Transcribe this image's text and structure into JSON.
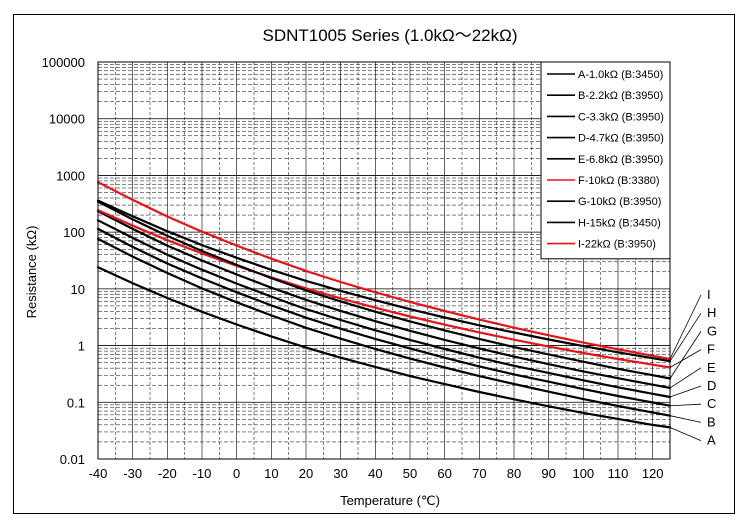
{
  "chart_data": {
    "type": "line",
    "title": "SDNT1005 Series (1.0kΩ～22kΩ)",
    "xlabel": "Temperature (℃)",
    "ylabel": "Resistance (kΩ)",
    "xlim": [
      -40,
      125
    ],
    "ylim": [
      0.01,
      100000
    ],
    "y_scale": "log",
    "grid": true,
    "legend_position": "top-right",
    "x_ticks": [
      "-40",
      "-30",
      "-20",
      "-10",
      "0",
      "10",
      "20",
      "30",
      "40",
      "50",
      "60",
      "70",
      "80",
      "90",
      "100",
      "110",
      "120"
    ],
    "y_ticks": [
      "100000",
      "10000",
      "1000",
      "100",
      "10",
      "1",
      "0.1",
      "0.01"
    ],
    "colors": {
      "black": "#000000",
      "red": "#e8131a",
      "grid": "#000000"
    },
    "series": [
      {
        "name": "A-1.0kΩ (B:3450)",
        "end_label": "A",
        "color": "#000000",
        "x": [
          -40,
          -30,
          -20,
          -10,
          0,
          10,
          20,
          25,
          30,
          40,
          50,
          60,
          70,
          80,
          90,
          100,
          110,
          120,
          125
        ],
        "values": [
          24.0,
          12.6,
          6.9,
          3.94,
          2.35,
          1.45,
          0.92,
          0.75,
          0.61,
          0.42,
          0.29,
          0.209,
          0.152,
          0.113,
          0.085,
          0.065,
          0.051,
          0.04,
          0.036
        ]
      },
      {
        "name": "B-2.2kΩ (B:3950)",
        "end_label": "B",
        "color": "#000000",
        "x": [
          -40,
          -30,
          -20,
          -10,
          0,
          10,
          20,
          25,
          30,
          40,
          50,
          60,
          70,
          80,
          90,
          100,
          110,
          120,
          125
        ],
        "values": [
          76,
          37,
          19,
          10.2,
          5.8,
          3.4,
          2.06,
          1.65,
          1.32,
          0.87,
          0.59,
          0.41,
          0.29,
          0.21,
          0.154,
          0.114,
          0.086,
          0.066,
          0.058
        ]
      },
      {
        "name": "C-3.3kΩ (B:3950)",
        "end_label": "C",
        "color": "#000000",
        "x": [
          -40,
          -30,
          -20,
          -10,
          0,
          10,
          20,
          25,
          30,
          40,
          50,
          60,
          70,
          80,
          90,
          100,
          110,
          120,
          125
        ],
        "values": [
          114,
          55,
          28,
          15.3,
          8.7,
          5.1,
          3.1,
          2.48,
          1.98,
          1.31,
          0.89,
          0.61,
          0.43,
          0.31,
          0.231,
          0.171,
          0.129,
          0.099,
          0.087
        ]
      },
      {
        "name": "D-4.7kΩ (B:3950)",
        "end_label": "D",
        "color": "#000000",
        "x": [
          -40,
          -30,
          -20,
          -10,
          0,
          10,
          20,
          25,
          30,
          40,
          50,
          60,
          70,
          80,
          90,
          100,
          110,
          120,
          125
        ],
        "values": [
          162,
          79,
          40,
          21.8,
          12.4,
          7.3,
          4.4,
          3.53,
          2.82,
          1.86,
          1.26,
          0.87,
          0.61,
          0.44,
          0.33,
          0.244,
          0.184,
          0.141,
          0.124
        ]
      },
      {
        "name": "E-6.8kΩ (B:3950)",
        "end_label": "E",
        "color": "#000000",
        "x": [
          -40,
          -30,
          -20,
          -10,
          0,
          10,
          20,
          25,
          30,
          40,
          50,
          60,
          70,
          80,
          90,
          100,
          110,
          120,
          125
        ],
        "values": [
          235,
          114,
          58,
          31.6,
          17.9,
          10.5,
          6.4,
          5.1,
          4.08,
          2.69,
          1.82,
          1.26,
          0.89,
          0.64,
          0.47,
          0.35,
          0.266,
          0.204,
          0.179
        ]
      },
      {
        "name": "F-10kΩ  (B:3380)",
        "end_label": "F",
        "color": "#e8131a",
        "x": [
          -40,
          -30,
          -20,
          -10,
          0,
          10,
          20,
          25,
          30,
          40,
          50,
          60,
          70,
          80,
          90,
          100,
          110,
          120,
          125
        ],
        "values": [
          245,
          130,
          72,
          42,
          25.5,
          15.9,
          10.2,
          8.3,
          6.8,
          4.65,
          3.25,
          2.33,
          1.71,
          1.27,
          0.96,
          0.74,
          0.58,
          0.46,
          0.41
        ]
      },
      {
        "name": "G-10kΩ (B:3950)",
        "end_label": "G",
        "color": "#000000",
        "x": [
          -40,
          -30,
          -20,
          -10,
          0,
          10,
          20,
          25,
          30,
          40,
          50,
          60,
          70,
          80,
          90,
          100,
          110,
          120,
          125
        ],
        "values": [
          345,
          168,
          86,
          46.5,
          26.4,
          15.5,
          9.4,
          7.5,
          6.0,
          3.96,
          2.67,
          1.85,
          1.31,
          0.94,
          0.7,
          0.52,
          0.39,
          0.3,
          0.263
        ]
      },
      {
        "name": "H-15kΩ (B:3450)",
        "end_label": "H",
        "color": "#000000",
        "x": [
          -40,
          -30,
          -20,
          -10,
          0,
          10,
          20,
          25,
          30,
          40,
          50,
          60,
          70,
          80,
          90,
          100,
          110,
          120,
          125
        ],
        "values": [
          360,
          190,
          104,
          59,
          35.3,
          21.7,
          13.8,
          11.3,
          9.2,
          6.3,
          4.38,
          3.13,
          2.28,
          1.7,
          1.28,
          0.98,
          0.76,
          0.6,
          0.53
        ]
      },
      {
        "name": "I-22kΩ (B:3950)",
        "end_label": "I",
        "color": "#e8131a",
        "x": [
          -40,
          -30,
          -20,
          -10,
          0,
          10,
          20,
          25,
          30,
          40,
          50,
          60,
          70,
          80,
          90,
          100,
          110,
          120,
          125
        ],
        "values": [
          760,
          370,
          189,
          102,
          58,
          34,
          20.7,
          16.5,
          13.2,
          8.7,
          5.9,
          4.07,
          2.87,
          2.07,
          1.52,
          1.13,
          0.86,
          0.66,
          0.58
        ]
      }
    ]
  }
}
